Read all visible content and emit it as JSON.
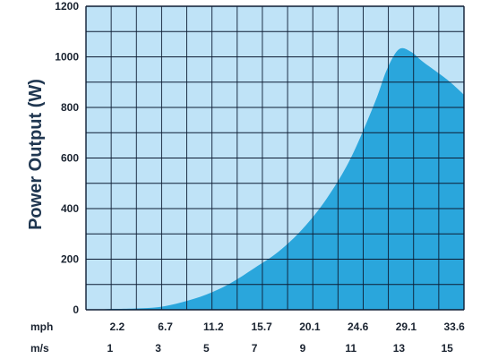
{
  "chart_data": {
    "type": "area",
    "ylabel": "Power Output (W)",
    "xlabel": "",
    "ylim": [
      0,
      1200
    ],
    "yticks": [
      "0",
      "200",
      "400",
      "600",
      "800",
      "1000",
      "1200"
    ],
    "mph_label": "mph",
    "ms_label": "m/s",
    "mph_ticks": [
      "2.2",
      "6.7",
      "11.2",
      "15.7",
      "20.1",
      "24.6",
      "29.1",
      "33.6"
    ],
    "ms_ticks": [
      "1",
      "3",
      "5",
      "7",
      "9",
      "11",
      "13",
      "15"
    ],
    "grid": true,
    "colors": {
      "area": "#2aa6dc",
      "background": "#bfe3f7",
      "grid": "#0d1c33"
    },
    "series": [
      {
        "x": [
          0.5,
          1,
          2,
          3,
          4,
          5,
          6,
          7,
          8,
          9,
          10,
          11,
          12,
          12.5,
          13,
          13.5,
          14,
          15,
          15.7
        ],
        "values": [
          0,
          3,
          5,
          10,
          30,
          60,
          105,
          165,
          230,
          320,
          440,
          600,
          820,
          950,
          1030,
          1020,
          980,
          910,
          850
        ]
      }
    ]
  }
}
